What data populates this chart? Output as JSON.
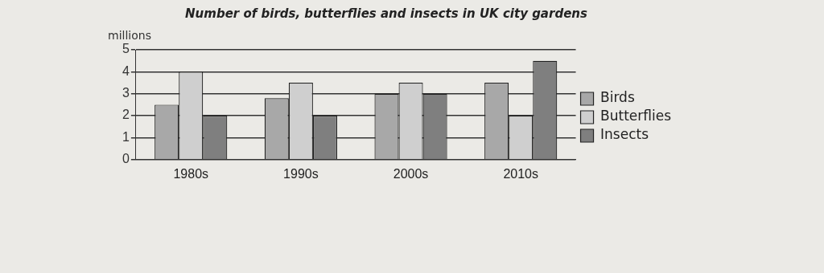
{
  "chart_data": {
    "type": "bar",
    "title": "Number of birds, butterflies and insects in UK city gardens",
    "ylabel": "millions",
    "categories": [
      "1980s",
      "1990s",
      "2000s",
      "2010s"
    ],
    "series": [
      {
        "name": "Birds",
        "color": "#a8a8a8",
        "values": [
          2.5,
          2.8,
          3,
          3.5
        ]
      },
      {
        "name": "Butterflies",
        "color": "#cfcfcf",
        "values": [
          4,
          3.5,
          3.5,
          2
        ]
      },
      {
        "name": "Insects",
        "color": "#7f7f7f",
        "values": [
          2,
          2,
          3,
          4.5
        ]
      }
    ],
    "ylim": [
      0,
      5
    ],
    "yticks": [
      0,
      1,
      2,
      3,
      4,
      5
    ],
    "grid": "y",
    "legend": "right"
  }
}
